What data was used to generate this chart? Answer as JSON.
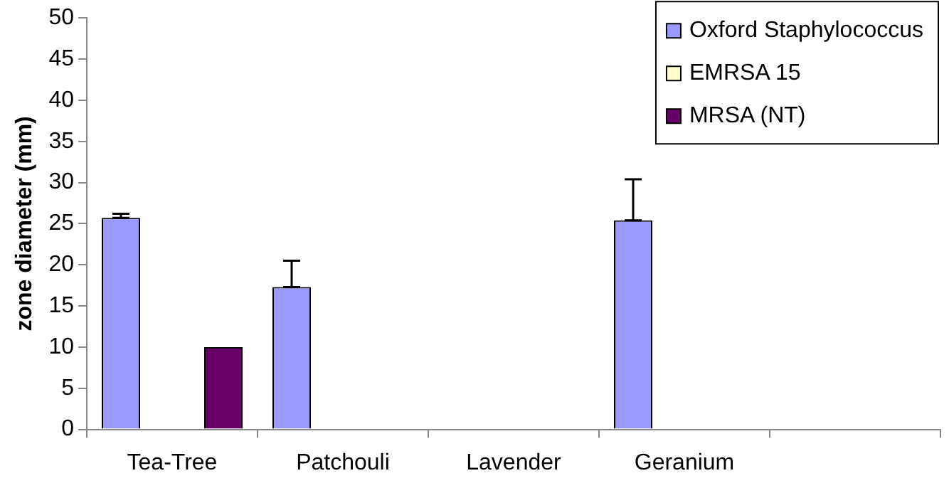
{
  "chart_data": {
    "type": "bar",
    "ylabel": "zone diameter (mm)",
    "categories": [
      "Tea-Tree",
      "Patchouli",
      "Lavender",
      "Geranium",
      null
    ],
    "series": [
      {
        "name": "Oxford Staphylococcus",
        "color": "#9999ff",
        "values": [
          25.7,
          17.3,
          0,
          25.4,
          0
        ],
        "errors": [
          [
            25.7,
            26.2
          ],
          [
            17.3,
            20.5
          ],
          null,
          [
            25.4,
            30.4
          ],
          null
        ]
      },
      {
        "name": "EMRSA 15",
        "color": "#ffffcc",
        "values": [
          null,
          null,
          null,
          null,
          null
        ]
      },
      {
        "name": "MRSA (NT)",
        "color": "#660066",
        "values": [
          10,
          null,
          null,
          null,
          null
        ]
      }
    ],
    "ylim": [
      0,
      50
    ],
    "yticks": [
      0,
      5,
      10,
      15,
      20,
      25,
      30,
      35,
      40,
      45,
      50
    ],
    "grid": false,
    "legend": "top right"
  }
}
